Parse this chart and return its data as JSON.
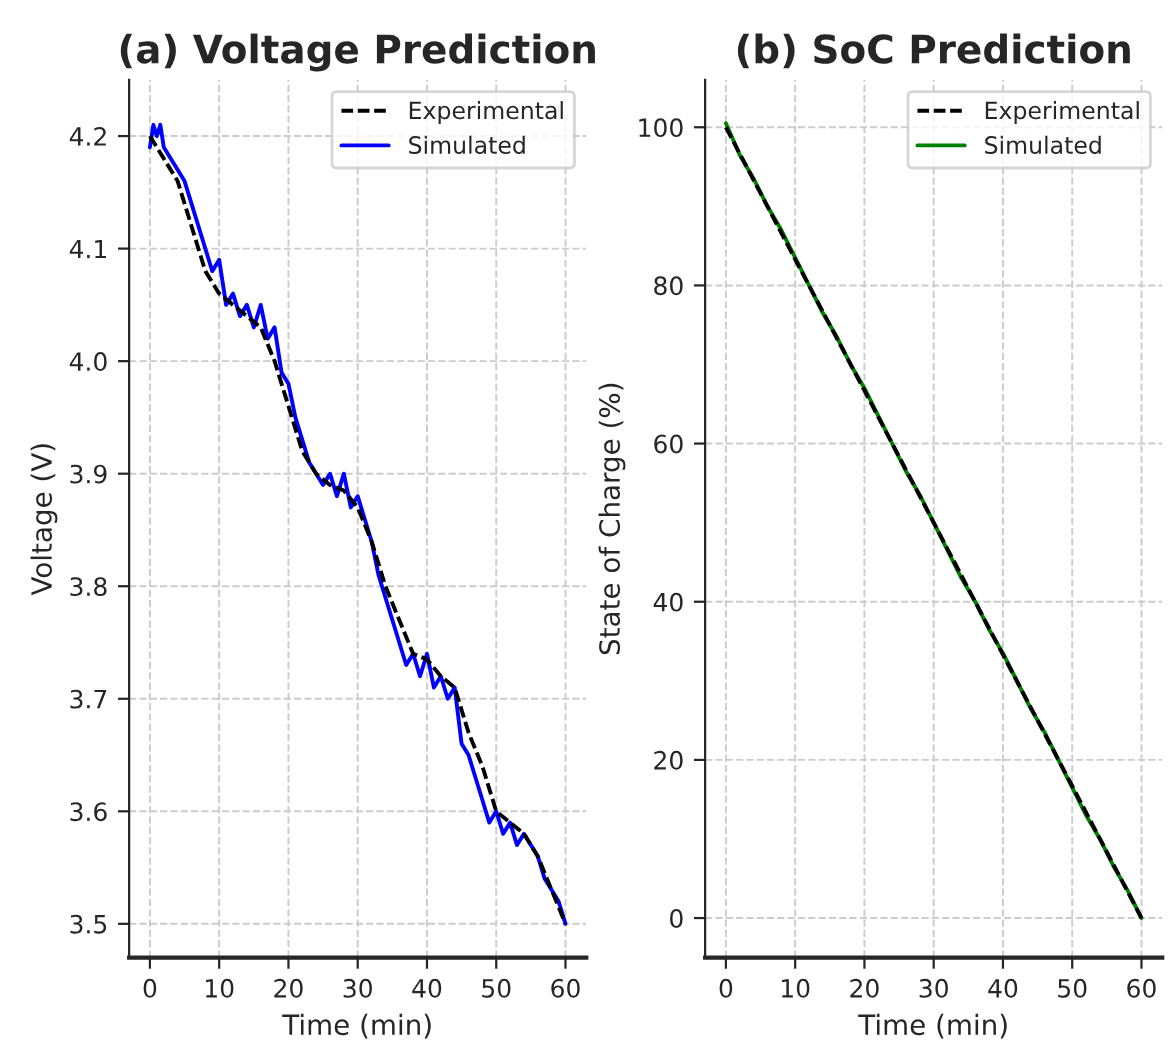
{
  "chart_data": [
    {
      "type": "line",
      "title": "(a) Voltage Prediction",
      "xlabel": "Time (min)",
      "ylabel": "Voltage (V)",
      "xlim": [
        -3,
        63
      ],
      "ylim": [
        3.47,
        4.25
      ],
      "xticks": [
        0,
        10,
        20,
        30,
        40,
        50,
        60
      ],
      "yticks": [
        3.5,
        3.6,
        3.7,
        3.8,
        3.9,
        {
          "value": 4,
          "label": "4.0"
        },
        4.1,
        4.2
      ],
      "grid": true,
      "legend": "top right",
      "series": [
        {
          "name": "Experimental",
          "color": "#000000",
          "line_style": "dashed",
          "x": [
            0,
            2,
            4,
            6,
            8,
            10,
            12,
            14,
            16,
            18,
            20,
            22,
            24,
            26,
            28,
            30,
            32,
            34,
            36,
            38,
            40,
            42,
            44,
            46,
            48,
            50,
            52,
            54,
            56,
            58,
            60
          ],
          "values": [
            4.2,
            4.18,
            4.16,
            4.12,
            4.08,
            4.06,
            4.05,
            4.04,
            4.03,
            4.0,
            3.96,
            3.92,
            3.9,
            3.89,
            3.885,
            3.87,
            3.84,
            3.8,
            3.77,
            3.74,
            3.735,
            3.72,
            3.71,
            3.67,
            3.64,
            3.6,
            3.59,
            3.58,
            3.56,
            3.53,
            3.5
          ]
        },
        {
          "name": "Simulated",
          "color": "#0000ff",
          "line_style": "solid",
          "x": [
            0,
            0.5,
            1,
            1.5,
            2,
            3,
            4,
            5,
            6,
            7,
            8,
            9,
            10,
            11,
            12,
            13,
            14,
            15,
            16,
            17,
            18,
            19,
            20,
            21,
            22,
            23,
            24,
            25,
            26,
            27,
            28,
            29,
            30,
            31,
            32,
            33,
            34,
            35,
            36,
            37,
            38,
            39,
            40,
            41,
            42,
            43,
            44,
            45,
            46,
            47,
            48,
            49,
            50,
            51,
            52,
            53,
            54,
            55,
            56,
            57,
            58,
            59,
            60
          ],
          "values": [
            4.19,
            4.21,
            4.2,
            4.21,
            4.19,
            4.18,
            4.17,
            4.16,
            4.14,
            4.12,
            4.1,
            4.08,
            4.09,
            4.05,
            4.06,
            4.04,
            4.05,
            4.03,
            4.05,
            4.02,
            4.03,
            3.99,
            3.98,
            3.95,
            3.93,
            3.91,
            3.9,
            3.89,
            3.9,
            3.88,
            3.9,
            3.87,
            3.88,
            3.86,
            3.84,
            3.81,
            3.79,
            3.77,
            3.75,
            3.73,
            3.74,
            3.72,
            3.74,
            3.71,
            3.72,
            3.7,
            3.71,
            3.66,
            3.65,
            3.63,
            3.61,
            3.59,
            3.6,
            3.58,
            3.59,
            3.57,
            3.58,
            3.57,
            3.56,
            3.54,
            3.53,
            3.52,
            3.5
          ]
        }
      ]
    },
    {
      "type": "line",
      "title": "(b) SoC Prediction",
      "xlabel": "Time (min)",
      "ylabel": "State of Charge (%)",
      "xlim": [
        -3,
        63
      ],
      "ylim": [
        -5,
        106
      ],
      "xticks": [
        0,
        10,
        20,
        30,
        40,
        50,
        60
      ],
      "yticks": [
        0,
        20,
        40,
        60,
        80,
        100
      ],
      "grid": true,
      "legend": "top right",
      "series": [
        {
          "name": "Experimental",
          "color": "#000000",
          "line_style": "dashed",
          "x": [
            0,
            10,
            20,
            30,
            40,
            50,
            60
          ],
          "values": [
            100,
            83.3,
            66.7,
            50,
            33.3,
            16.7,
            0
          ]
        },
        {
          "name": "Simulated",
          "color": "#008000",
          "line_style": "solid",
          "x": [
            0,
            2,
            4,
            6,
            8,
            10,
            12,
            14,
            16,
            18,
            20,
            22,
            24,
            26,
            28,
            30,
            32,
            34,
            36,
            38,
            40,
            42,
            44,
            46,
            48,
            50,
            52,
            54,
            56,
            58,
            60
          ],
          "values": [
            100.5,
            96.5,
            93.5,
            90,
            87,
            83.5,
            80,
            76.5,
            73.5,
            70,
            67,
            63.5,
            60,
            56.5,
            53.5,
            50,
            46.5,
            43,
            40,
            36.5,
            33.5,
            30,
            26.5,
            23.5,
            20,
            16.5,
            13,
            10,
            6.5,
            3.5,
            0
          ]
        }
      ]
    }
  ]
}
